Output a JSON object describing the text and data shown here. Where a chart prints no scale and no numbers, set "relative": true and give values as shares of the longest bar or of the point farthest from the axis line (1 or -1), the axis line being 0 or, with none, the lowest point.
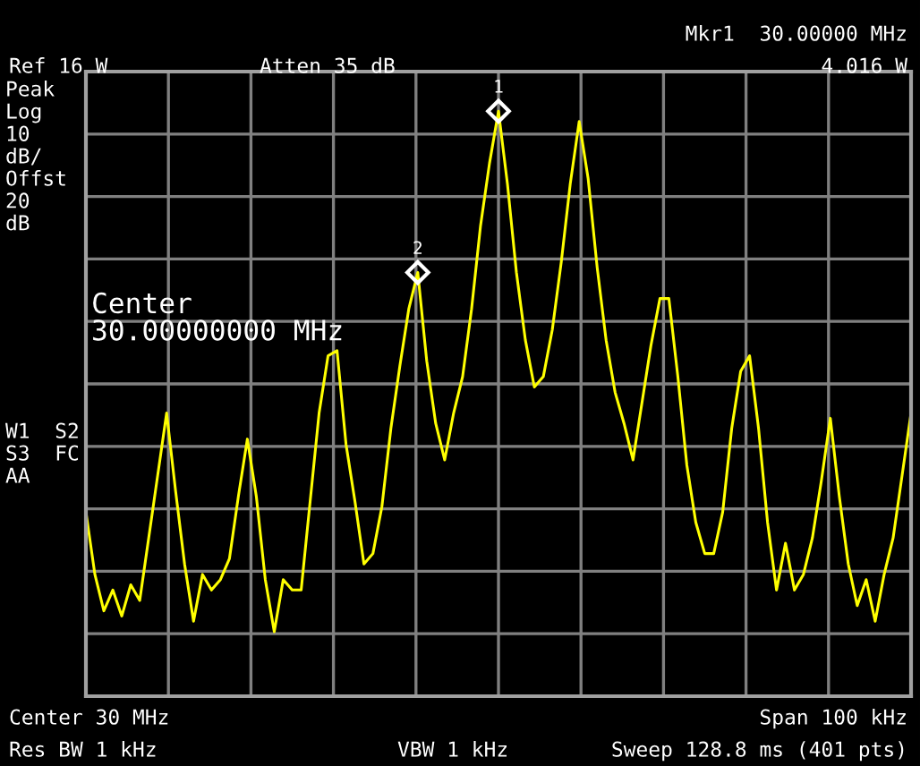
{
  "chart_data": {
    "type": "line",
    "relative": true,
    "grid": true,
    "legend": false,
    "marker": "none",
    "line_style": "solid",
    "categories": [
      null,
      null,
      null,
      null,
      null,
      null,
      null,
      null,
      null,
      null,
      null,
      null,
      null,
      null,
      null,
      null,
      null,
      null,
      null,
      null,
      null,
      null,
      null,
      null,
      null,
      null,
      null,
      null,
      null,
      null,
      null,
      null,
      null,
      null,
      null,
      null,
      null,
      null,
      null,
      null,
      null,
      null,
      null,
      null,
      null,
      null,
      null,
      null,
      null,
      null,
      null,
      null,
      null,
      null,
      null,
      null,
      null,
      null,
      null,
      null,
      null,
      null,
      null,
      null,
      null,
      null,
      null,
      null,
      null,
      null,
      null,
      null,
      null,
      null,
      null,
      null,
      null,
      null,
      null,
      null,
      null,
      null,
      null,
      null,
      null,
      null,
      null,
      null,
      null,
      null,
      null,
      null,
      null
    ],
    "series": [
      {
        "color": "#ffff00",
        "values": [
          0.23,
          0.11,
          0.04,
          0.08,
          0.03,
          0.09,
          0.06,
          0.18,
          0.3,
          0.42,
          0.27,
          0.13,
          0.02,
          0.11,
          0.08,
          0.1,
          0.14,
          0.26,
          0.37,
          0.26,
          0.1,
          0,
          0.1,
          0.08,
          0.08,
          0.25,
          0.42,
          0.53,
          0.54,
          0.36,
          0.25,
          0.13,
          0.15,
          0.24,
          0.39,
          0.51,
          0.62,
          0.69,
          0.52,
          0.4,
          0.33,
          0.42,
          0.49,
          0.62,
          0.78,
          0.9,
          1,
          0.86,
          0.69,
          0.56,
          0.47,
          0.49,
          0.58,
          0.71,
          0.86,
          0.98,
          0.87,
          0.7,
          0.56,
          0.46,
          0.4,
          0.33,
          0.44,
          0.55,
          0.64,
          0.64,
          0.49,
          0.32,
          0.21,
          0.15,
          0.15,
          0.23,
          0.39,
          0.5,
          0.53,
          0.39,
          0.21,
          0.08,
          0.17,
          0.08,
          0.11,
          0.18,
          0.29,
          0.41,
          0.26,
          0.13,
          0.05,
          0.1,
          0.02,
          0.11,
          0.18,
          0.3,
          0.42
        ]
      }
    ],
    "annotations": [
      {
        "text": "1",
        "y": 1
      },
      {
        "text": "2",
        "y": 0.69
      },
      "Mkr1  30.00000 MHz",
      "Ref 16 W",
      "Atten 35 dB",
      "4.016 W",
      "Peak\nLog\n10\ndB/\nOffst\n20\ndB",
      "W1  S2\nS3  FC\nAA",
      "Center\n30.00000000 MHz",
      "Center 30 MHz",
      "Span 100 kHz",
      "Res BW 1 kHz",
      "VBW 1 kHz",
      "Sweep 128.8 ms (401 pts)"
    ]
  }
}
